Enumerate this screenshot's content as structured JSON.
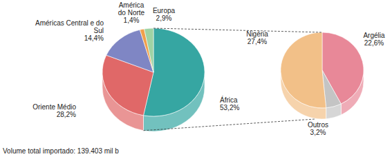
{
  "chart_data": [
    {
      "type": "pie",
      "categories": [
        "África",
        "Oriente Médio",
        "Américas Central e do Sul",
        "América do Norte",
        "Europa"
      ],
      "values": [
        53.2,
        28.2,
        14.4,
        1.4,
        2.9
      ],
      "value_labels": [
        "53,2%",
        "28,2%",
        "14,4%",
        "1,4%",
        "2,9%"
      ],
      "colors": [
        "#36a6a2",
        "#e06868",
        "#7f86c4",
        "#f0a04c",
        "#9fd3a4"
      ],
      "data_labels": true,
      "annotation": "Volume total importado: 139.403 mil b"
    },
    {
      "type": "pie",
      "categories": [
        "Argélia",
        "Outros",
        "Nigéria"
      ],
      "values": [
        22.6,
        3.2,
        27.4
      ],
      "value_labels": [
        "22,6%",
        "3,2%",
        "27,4%"
      ],
      "colors": [
        "#e88898",
        "#c4c4c4",
        "#f2c088"
      ],
      "data_labels": true
    }
  ]
}
